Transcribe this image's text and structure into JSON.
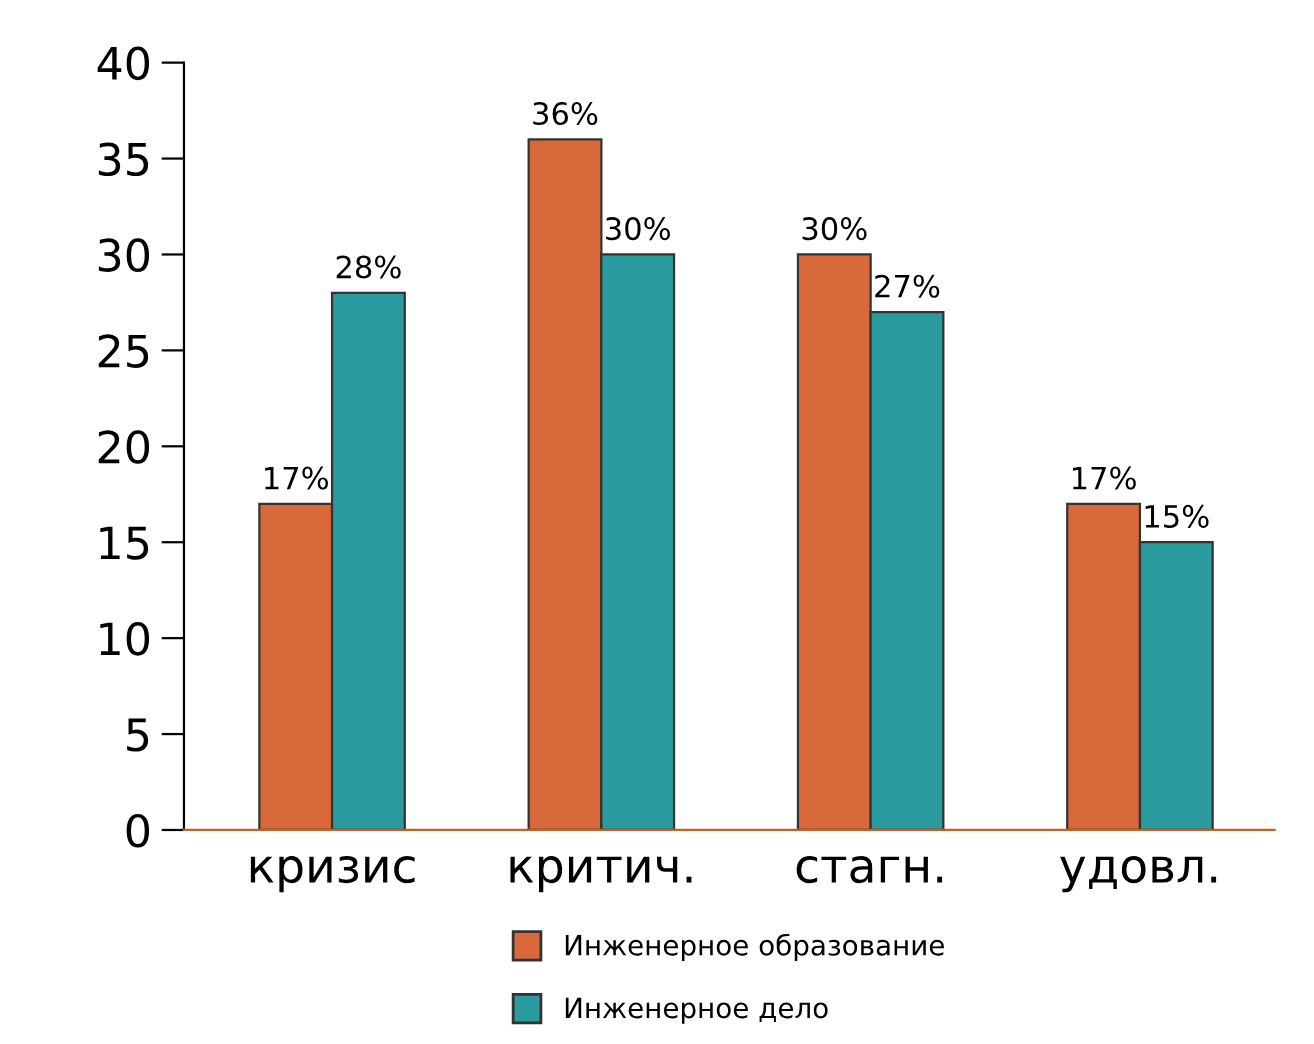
{
  "chart_data": {
    "type": "bar",
    "categories": [
      "кризис",
      "критич.",
      "стагн.",
      "удовл."
    ],
    "series": [
      {
        "name": "Инженерное образование",
        "color": "#d9693a",
        "values": [
          17,
          36,
          30,
          17
        ],
        "value_labels": [
          "17%",
          "36%",
          "30%",
          "17%"
        ]
      },
      {
        "name": "Инженерное дело",
        "color": "#2a9b9e",
        "values": [
          28,
          30,
          27,
          15
        ],
        "value_labels": [
          "28%",
          "30%",
          "27%",
          "15%"
        ]
      }
    ],
    "ylim": [
      0,
      40
    ],
    "yticks": [
      0,
      5,
      10,
      15,
      20,
      25,
      30,
      35,
      40
    ],
    "grid": false,
    "legend": "bottom"
  }
}
